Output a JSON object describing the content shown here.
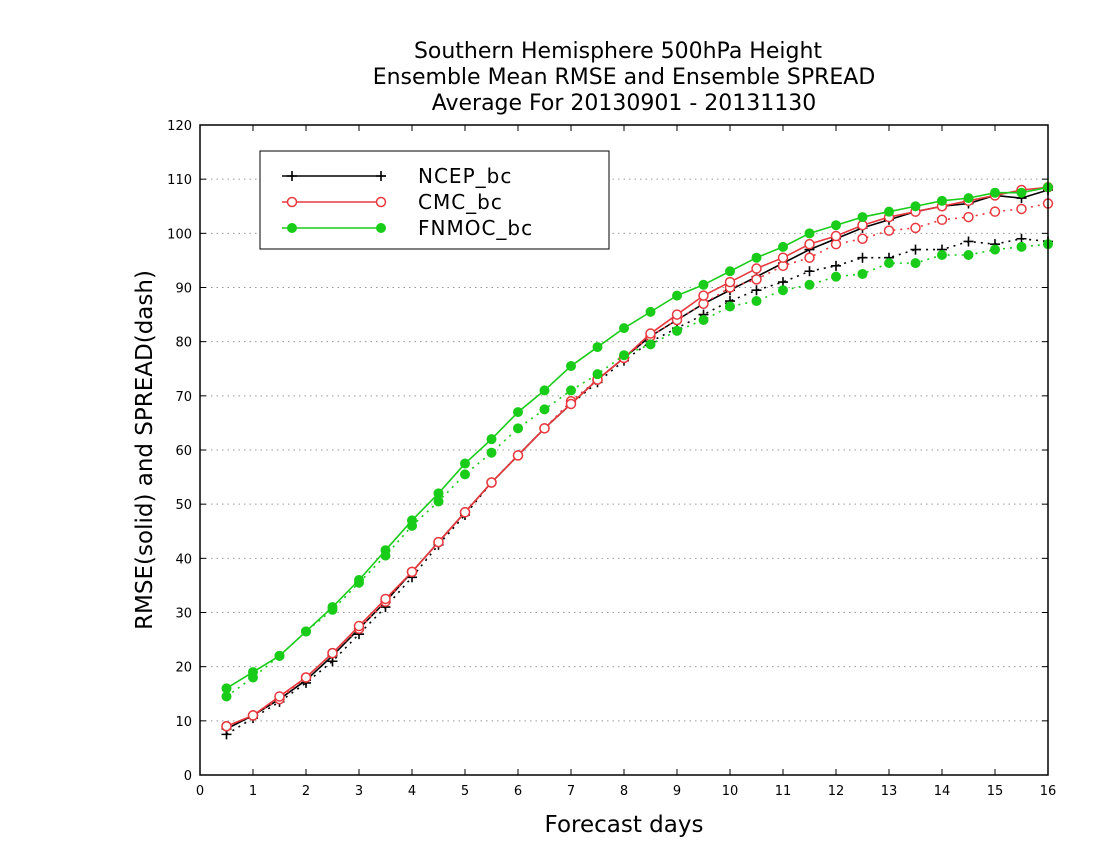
{
  "chart_data": {
    "type": "line",
    "title_lines": [
      "Southern Hemisphere 500hPa Height",
      "Ensemble Mean RMSE and Ensemble SPREAD",
      "Average For 20130901 - 20131130"
    ],
    "xlabel": "Forecast days",
    "ylabel": "RMSE(solid) and SPREAD(dash)",
    "xlim": [
      0,
      16
    ],
    "ylim": [
      0,
      120
    ],
    "xticks": [
      "0",
      "1",
      "2",
      "3",
      "4",
      "5",
      "6",
      "7",
      "8",
      "9",
      "10",
      "11",
      "12",
      "13",
      "14",
      "15",
      "16"
    ],
    "yticks": [
      "0",
      "10",
      "20",
      "30",
      "40",
      "50",
      "60",
      "70",
      "80",
      "90",
      "100",
      "110",
      "120"
    ],
    "grid": "horizontal dotted",
    "legend_position": "top-left",
    "x": [
      0.5,
      1,
      1.5,
      2,
      2.5,
      3,
      3.5,
      4,
      4.5,
      5,
      5.5,
      6,
      6.5,
      7,
      7.5,
      8,
      8.5,
      9,
      9.5,
      10,
      10.5,
      11,
      11.5,
      12,
      12.5,
      13,
      13.5,
      14,
      14.5,
      15,
      15.5,
      16
    ],
    "series": [
      {
        "name": "NCEP_bc",
        "color": "#000000",
        "marker": "plus",
        "rmse": [
          8.5,
          11,
          14,
          17.5,
          22,
          27,
          32,
          37.5,
          43,
          48.5,
          54,
          59,
          64,
          68.5,
          73,
          77,
          81,
          84,
          87,
          89.5,
          92,
          94.5,
          97,
          99,
          101,
          102.5,
          104,
          105,
          105.5,
          107,
          106.5,
          108
        ],
        "spread": [
          7.5,
          10.5,
          13.5,
          17,
          21,
          26,
          31,
          36.5,
          42.5,
          48,
          54,
          59,
          64,
          68.5,
          72.5,
          76.5,
          80,
          82.5,
          85,
          87.5,
          89.5,
          91,
          93,
          94,
          95.5,
          95.5,
          97,
          97,
          98.5,
          98,
          99,
          98.5
        ]
      },
      {
        "name": "CMC_bc",
        "color": "#e8383d",
        "marker": "open-circle",
        "rmse": [
          9,
          11,
          14.5,
          18,
          22.5,
          27.5,
          32.5,
          37.5,
          43,
          48.5,
          54,
          59,
          64,
          68.5,
          73,
          77,
          81.5,
          85,
          88.5,
          91,
          93.5,
          95.5,
          98,
          99.5,
          101.5,
          103,
          104,
          105,
          106,
          107,
          108,
          108.5
        ],
        "spread": [
          9,
          11,
          14,
          18,
          22.5,
          27,
          32,
          37.5,
          43,
          48.5,
          54,
          59,
          64,
          69,
          73,
          77,
          81,
          84,
          87,
          90,
          91.5,
          94,
          95.5,
          98,
          99,
          100.5,
          101,
          102.5,
          103,
          104,
          104.5,
          105.5
        ]
      },
      {
        "name": "FNMOC_bc",
        "color": "#19cc19",
        "marker": "filled-circle",
        "rmse": [
          16,
          19,
          22,
          26.5,
          31,
          36,
          41.5,
          47,
          52,
          57.5,
          62,
          67,
          71,
          75.5,
          79,
          82.5,
          85.5,
          88.5,
          90.5,
          93,
          95.5,
          97.5,
          100,
          101.5,
          103,
          104,
          105,
          106,
          106.5,
          107.5,
          107.5,
          108.5
        ],
        "spread": [
          14.5,
          18,
          22,
          26.5,
          30.5,
          35.5,
          40.5,
          46,
          50.5,
          55.5,
          59.5,
          64,
          67.5,
          71,
          74,
          77.5,
          79.5,
          82,
          84,
          86.5,
          87.5,
          89.5,
          90.5,
          92,
          92.5,
          94.5,
          94.5,
          96,
          96,
          97,
          97.5,
          98
        ]
      }
    ]
  }
}
